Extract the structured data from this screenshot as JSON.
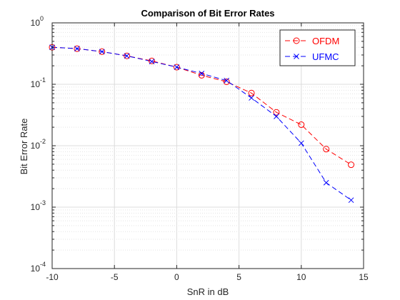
{
  "chart_data": {
    "type": "line",
    "title": "Comparison of Bit Error Rates",
    "xlabel": "SnR in dB",
    "ylabel": "Bit Error Rate",
    "xlim": [
      -10,
      15
    ],
    "ylim": [
      0.0001,
      1
    ],
    "yscale": "log",
    "grid": true,
    "legend_position": "top-right",
    "x_ticks": [
      -10,
      -5,
      0,
      5,
      10,
      15
    ],
    "x_tick_labels": [
      "-10",
      "-5",
      "0",
      "5",
      "10",
      "15"
    ],
    "y_ticks": [
      0.0001,
      0.001,
      0.01,
      0.1,
      1
    ],
    "y_tick_labels": [
      {
        "base": "10",
        "exp": "-4"
      },
      {
        "base": "10",
        "exp": "-3"
      },
      {
        "base": "10",
        "exp": "-2"
      },
      {
        "base": "10",
        "exp": "-1"
      },
      {
        "base": "10",
        "exp": "0"
      }
    ],
    "x": [
      -10,
      -8,
      -6,
      -4,
      -2,
      0,
      2,
      4,
      6,
      8,
      10,
      12,
      14
    ],
    "series": [
      {
        "name": "OFDM",
        "color": "#ff0000",
        "marker": "circle",
        "line_style": "dashed",
        "values": [
          0.4,
          0.38,
          0.34,
          0.29,
          0.24,
          0.19,
          0.14,
          0.11,
          0.072,
          0.035,
          0.022,
          0.0088,
          0.0049
        ]
      },
      {
        "name": "UFMC",
        "color": "#0000ff",
        "marker": "x",
        "line_style": "dashed",
        "values": [
          0.4,
          0.38,
          0.34,
          0.29,
          0.235,
          0.19,
          0.15,
          0.115,
          0.06,
          0.03,
          0.011,
          0.0025,
          0.0013
        ]
      }
    ]
  }
}
